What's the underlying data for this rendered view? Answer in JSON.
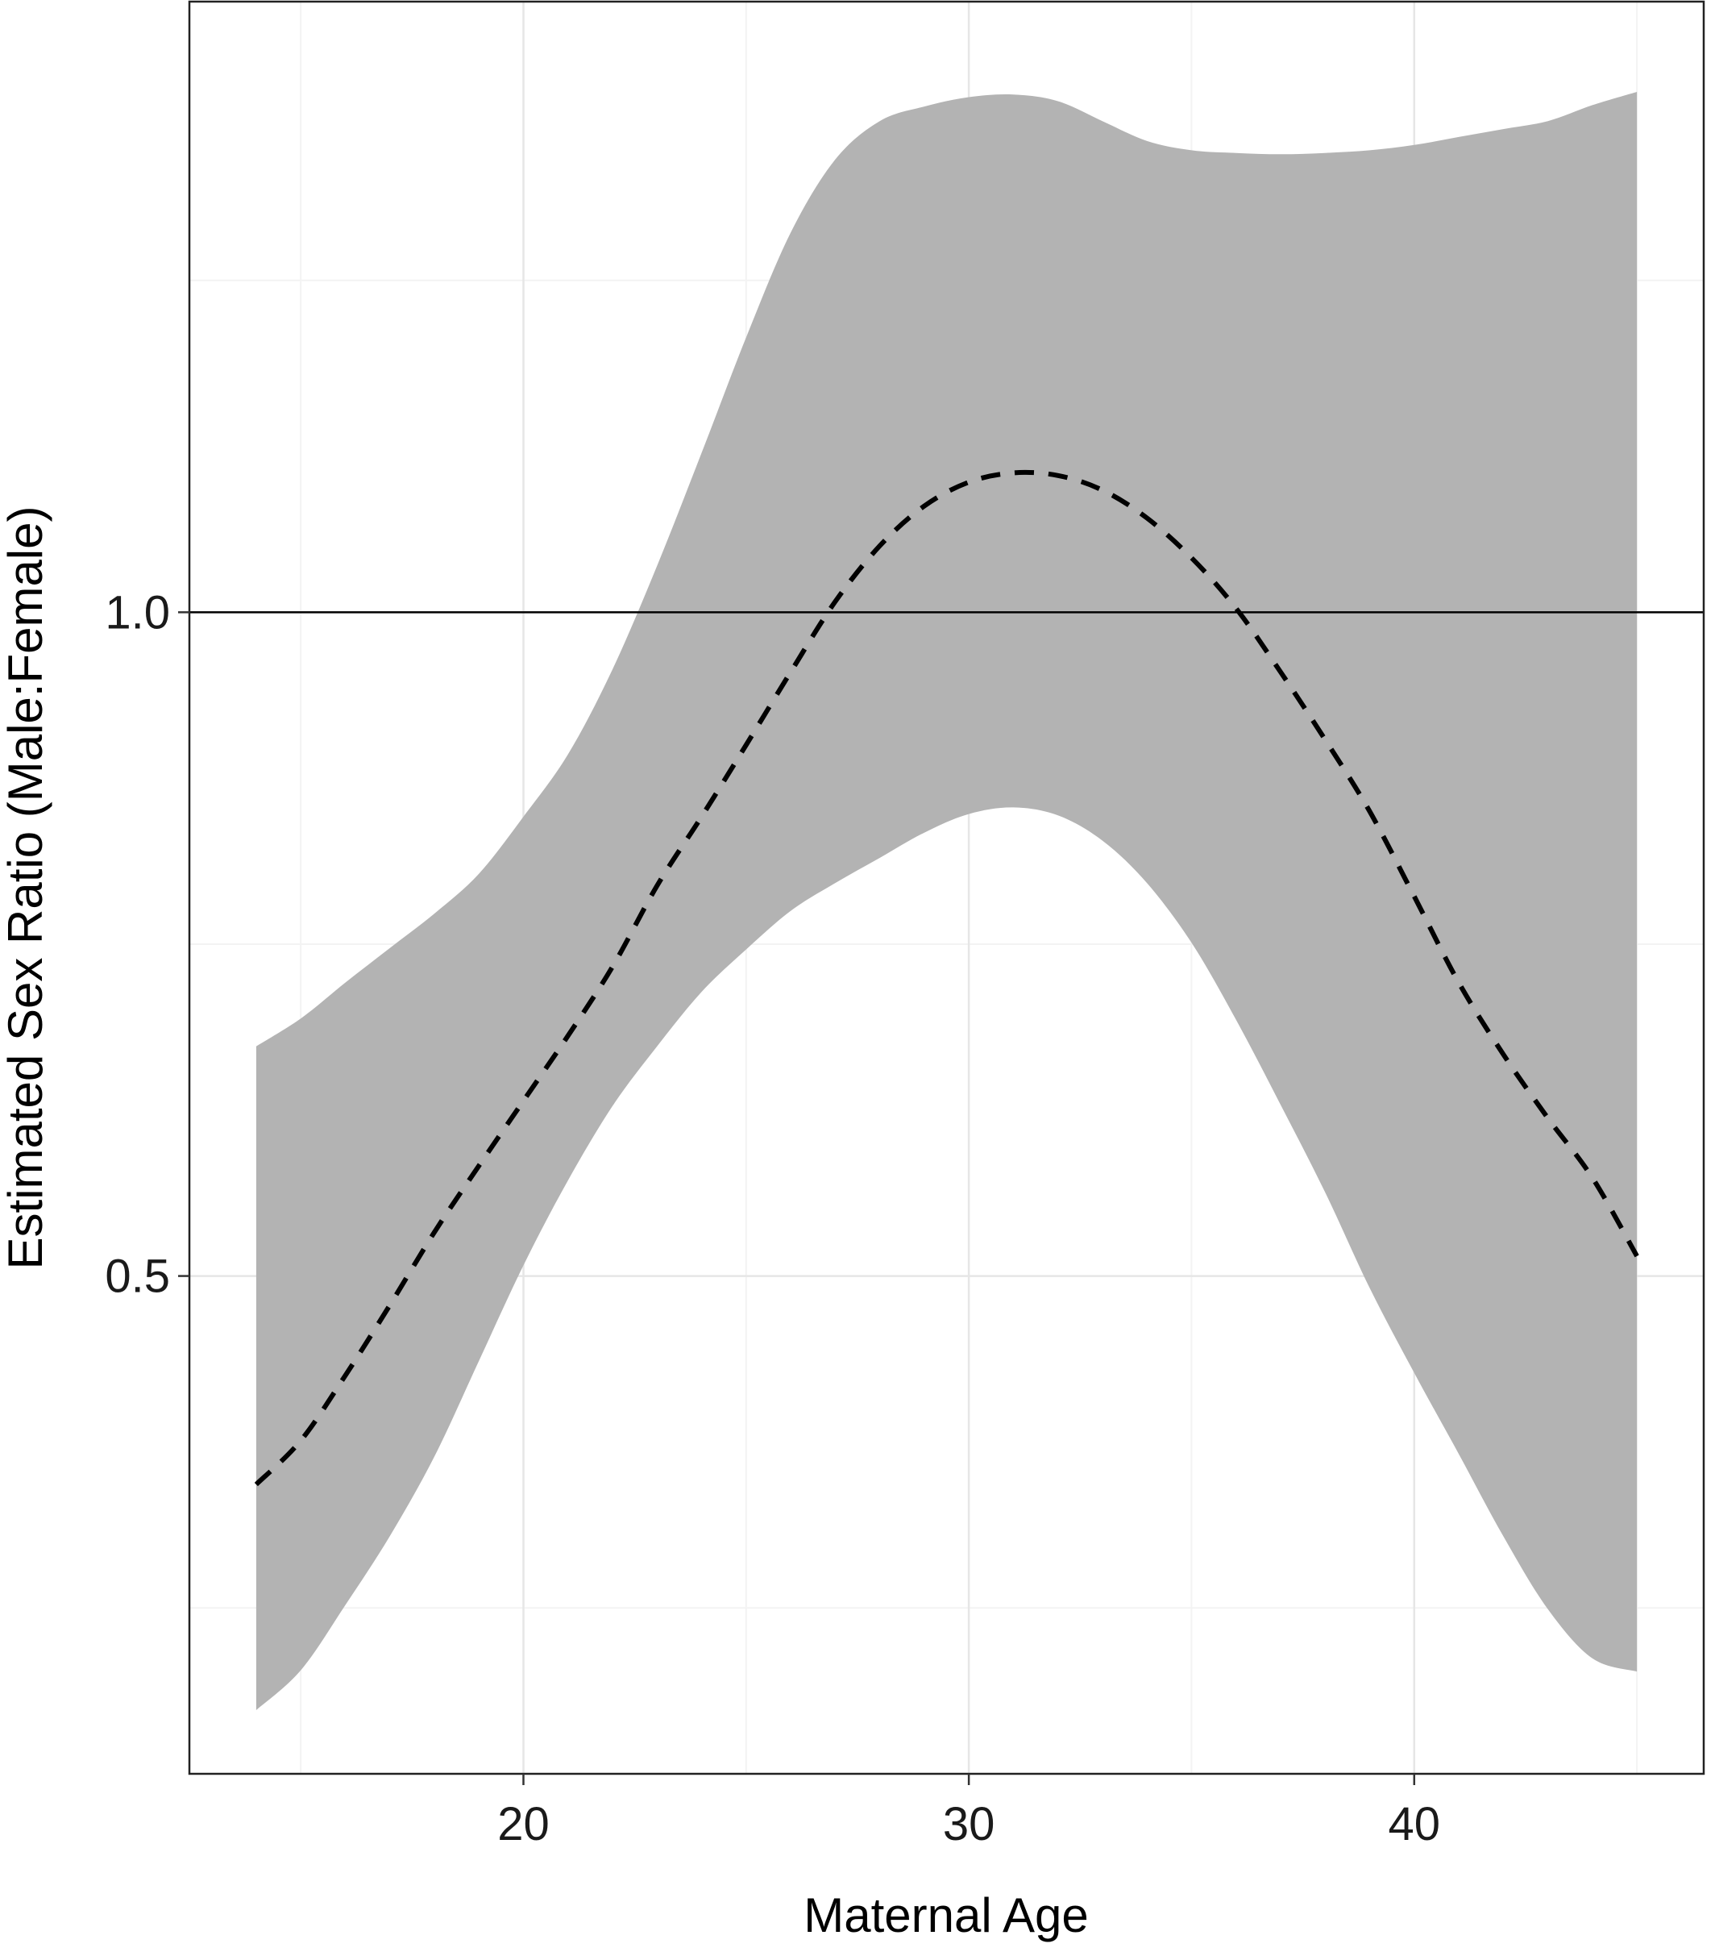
{
  "chart_data": {
    "type": "line",
    "title": "",
    "xlabel": "Maternal Age",
    "ylabel": "Estimated Sex Ratio (Male:Female)",
    "xlim": [
      12.5,
      46.5
    ],
    "ylim": [
      0.125,
      1.46
    ],
    "x_major_ticks": [
      20,
      30,
      40
    ],
    "x_tick_labels": [
      "20",
      "30",
      "40"
    ],
    "x_minor_ticks": [
      15,
      25,
      35,
      45
    ],
    "y_major_ticks": [
      0.5,
      1.0
    ],
    "y_tick_labels": [
      "0.5",
      "1.0"
    ],
    "y_minor_ticks": [
      0.25,
      0.75,
      1.25
    ],
    "reference_line": {
      "y": 1.0,
      "color": "#000000"
    },
    "grid": true,
    "series": [
      {
        "style": "dashed",
        "color": "#000000",
        "x": [
          14,
          15,
          16,
          17,
          18,
          19,
          20,
          21,
          22,
          23,
          24,
          25,
          26,
          27,
          28,
          29,
          30,
          31,
          32,
          33,
          34,
          35,
          36,
          37,
          38,
          39,
          40,
          41,
          42,
          43,
          44,
          45
        ],
        "y": [
          0.343,
          0.376,
          0.425,
          0.478,
          0.533,
          0.583,
          0.632,
          0.681,
          0.733,
          0.794,
          0.846,
          0.9,
          0.955,
          1.008,
          1.05,
          1.08,
          1.098,
          1.105,
          1.103,
          1.092,
          1.071,
          1.041,
          1.003,
          0.955,
          0.904,
          0.85,
          0.786,
          0.721,
          0.667,
          0.619,
          0.574,
          0.515
        ]
      }
    ],
    "confidence_band": {
      "color": "#b3b3b3",
      "x": [
        14,
        15,
        16,
        17,
        18,
        19,
        20,
        21,
        22,
        23,
        24,
        25,
        26,
        27,
        28,
        29,
        30,
        31,
        32,
        33,
        34,
        35,
        36,
        37,
        38,
        39,
        40,
        41,
        42,
        43,
        44,
        45
      ],
      "lower": [
        0.173,
        0.203,
        0.252,
        0.304,
        0.364,
        0.436,
        0.508,
        0.572,
        0.628,
        0.673,
        0.714,
        0.746,
        0.775,
        0.796,
        0.815,
        0.834,
        0.848,
        0.853,
        0.847,
        0.828,
        0.796,
        0.751,
        0.693,
        0.629,
        0.563,
        0.491,
        0.427,
        0.366,
        0.304,
        0.249,
        0.212,
        0.202
      ],
      "upper": [
        0.673,
        0.694,
        0.721,
        0.747,
        0.773,
        0.803,
        0.846,
        0.893,
        0.957,
        1.035,
        1.12,
        1.207,
        1.286,
        1.341,
        1.37,
        1.381,
        1.388,
        1.39,
        1.385,
        1.37,
        1.355,
        1.348,
        1.346,
        1.345,
        1.346,
        1.348,
        1.352,
        1.358,
        1.364,
        1.37,
        1.382,
        1.392
      ]
    }
  }
}
